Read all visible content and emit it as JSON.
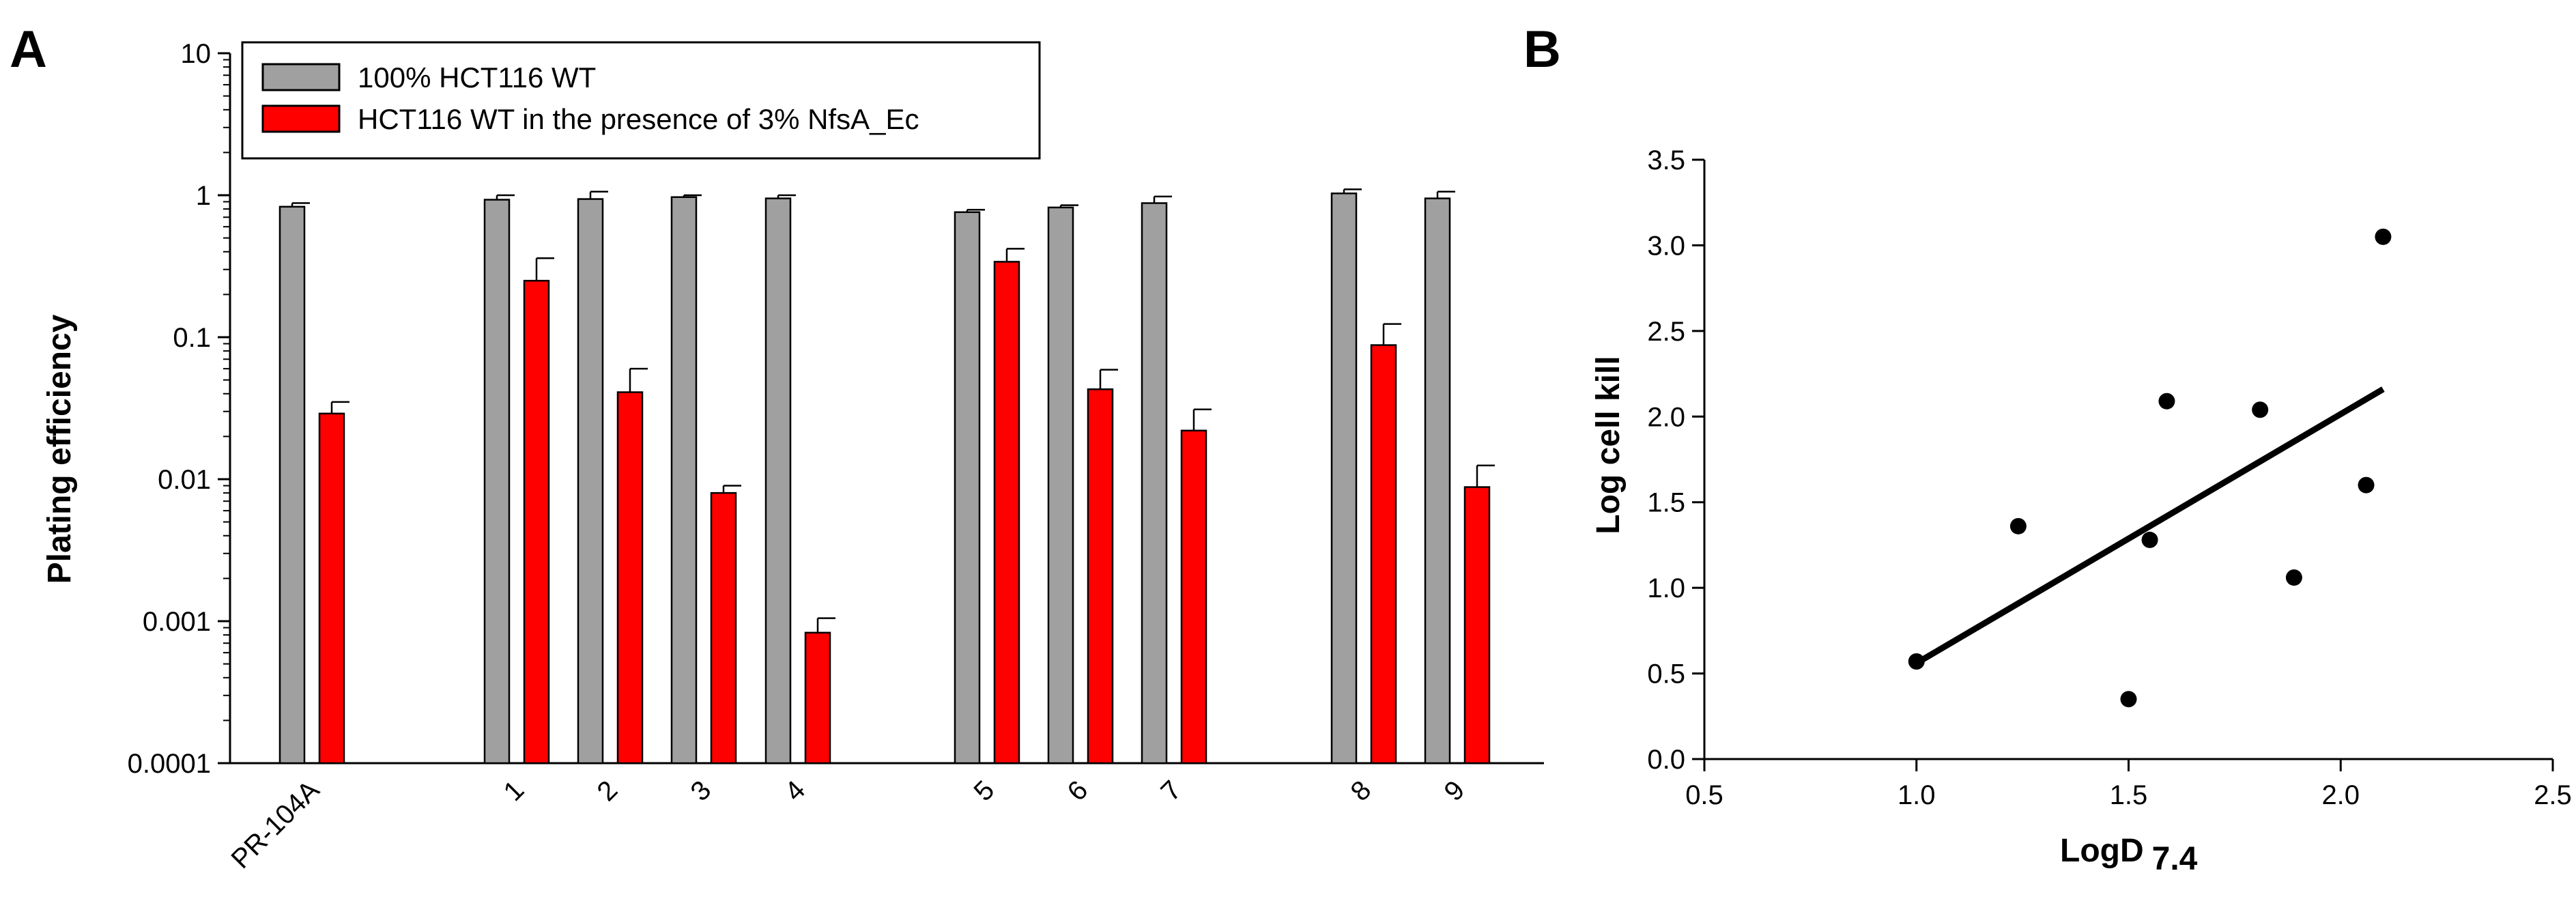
{
  "panels": {
    "a_label": "A",
    "b_label": "B"
  },
  "chart_data": [
    {
      "panel": "A",
      "type": "bar",
      "scale": "log",
      "ylabel": "Plating efficiency",
      "xlabel": "",
      "ylim": [
        0.0001,
        10
      ],
      "yticks": [
        "10",
        "1",
        "0.1",
        "0.01",
        "0.001",
        "0.0001"
      ],
      "ytick_values": [
        10,
        1,
        0.1,
        0.01,
        0.001,
        0.0001
      ],
      "categories": [
        "PR-104A",
        "1",
        "2",
        "3",
        "4",
        "5",
        "6",
        "7",
        "8",
        "9"
      ],
      "legend_position": "top-left",
      "series": [
        {
          "name": "100% HCT116 WT",
          "color": "#a0a0a0",
          "values": [
            0.83,
            0.93,
            0.94,
            0.97,
            0.95,
            0.76,
            0.82,
            0.88,
            1.03,
            0.95
          ],
          "errors": [
            0.88,
            1.0,
            1.06,
            1.0,
            1.0,
            0.79,
            0.85,
            0.98,
            1.1,
            1.06
          ]
        },
        {
          "name": "HCT116 WT in the presence of 3% NfsA_Ec",
          "color": "#ff0000",
          "values": [
            0.029,
            0.25,
            0.041,
            0.008,
            0.00083,
            0.34,
            0.043,
            0.022,
            0.088,
            0.0088
          ],
          "errors": [
            0.035,
            0.36,
            0.06,
            0.009,
            0.00105,
            0.42,
            0.059,
            0.031,
            0.124,
            0.0125
          ]
        }
      ]
    },
    {
      "panel": "B",
      "type": "scatter",
      "xlabel": "LogD",
      "xlabel_sub": "7.4",
      "ylabel": "Log cell kill",
      "xlim": [
        0.5,
        2.5
      ],
      "ylim": [
        0.0,
        3.5
      ],
      "xticks": [
        "0.5",
        "1.0",
        "1.5",
        "2.0",
        "2.5"
      ],
      "xtick_values": [
        0.5,
        1.0,
        1.5,
        2.0,
        2.5
      ],
      "yticks": [
        "0.0",
        "0.5",
        "1.0",
        "1.5",
        "2.0",
        "2.5",
        "3.0",
        "3.5"
      ],
      "ytick_values": [
        0.0,
        0.5,
        1.0,
        1.5,
        2.0,
        2.5,
        3.0,
        3.5
      ],
      "points": [
        {
          "x": 1.0,
          "y": 0.57
        },
        {
          "x": 1.24,
          "y": 1.36
        },
        {
          "x": 1.5,
          "y": 0.35
        },
        {
          "x": 1.55,
          "y": 1.28
        },
        {
          "x": 1.59,
          "y": 2.09
        },
        {
          "x": 1.81,
          "y": 2.04
        },
        {
          "x": 1.89,
          "y": 1.06
        },
        {
          "x": 2.06,
          "y": 1.6
        },
        {
          "x": 2.1,
          "y": 3.05
        }
      ],
      "fit_line": {
        "x1": 1.0,
        "y1": 0.56,
        "x2": 2.1,
        "y2": 2.16
      }
    }
  ]
}
